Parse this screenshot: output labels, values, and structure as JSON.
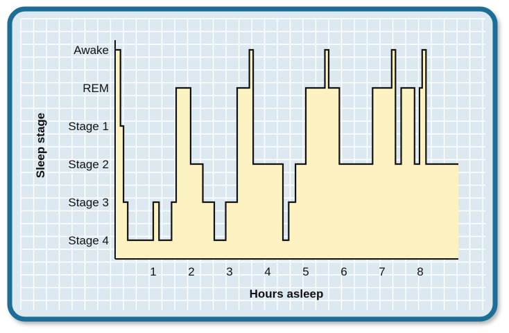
{
  "chart_data": {
    "type": "line",
    "title": "",
    "xlabel": "Hours asleep",
    "ylabel": "Sleep stage",
    "xlim": [
      0,
      9
    ],
    "xticks": [
      1,
      2,
      3,
      4,
      5,
      6,
      7,
      8
    ],
    "yticks": [
      "Awake",
      "REM",
      "Stage 1",
      "Stage 2",
      "Stage 3",
      "Stage 4"
    ],
    "grid": true,
    "legend": "none",
    "area_fill": true,
    "series": [
      {
        "name": "",
        "x": [
          0.0,
          0.14,
          0.14,
          0.22,
          0.22,
          0.33,
          0.33,
          1.0,
          1.0,
          1.15,
          1.15,
          1.48,
          1.48,
          1.6,
          1.6,
          1.98,
          1.98,
          2.3,
          2.3,
          2.6,
          2.6,
          2.9,
          2.9,
          3.2,
          3.2,
          3.52,
          3.52,
          3.62,
          3.62,
          3.72,
          3.72,
          4.4,
          4.4,
          4.55,
          4.55,
          4.73,
          4.73,
          5.0,
          5.0,
          5.5,
          5.5,
          5.6,
          5.6,
          5.88,
          5.88,
          6.75,
          6.75,
          7.25,
          7.25,
          7.35,
          7.35,
          7.5,
          7.5,
          7.85,
          7.85,
          7.98,
          7.98,
          8.05,
          8.05,
          8.15,
          8.15,
          9.0
        ],
        "y": [
          "Awake",
          "Awake",
          "Stage 1",
          "Stage 1",
          "Stage 3",
          "Stage 3",
          "Stage 4",
          "Stage 4",
          "Stage 3",
          "Stage 3",
          "Stage 4",
          "Stage 4",
          "Stage 3",
          "Stage 3",
          "REM",
          "REM",
          "Stage 2",
          "Stage 2",
          "Stage 3",
          "Stage 3",
          "Stage 4",
          "Stage 4",
          "Stage 3",
          "Stage 3",
          "REM",
          "REM",
          "Awake",
          "Awake",
          "Stage 2",
          "Stage 2",
          "Stage 2",
          "Stage 2",
          "Stage 4",
          "Stage 4",
          "Stage 3",
          "Stage 3",
          "Stage 2",
          "Stage 2",
          "REM",
          "REM",
          "Awake",
          "Awake",
          "REM",
          "REM",
          "Stage 2",
          "Stage 2",
          "REM",
          "REM",
          "Awake",
          "Awake",
          "Stage 2",
          "Stage 2",
          "REM",
          "REM",
          "Stage 2",
          "Stage 2",
          "REM",
          "REM",
          "Awake",
          "Awake",
          "Stage 2",
          "Stage 2"
        ]
      }
    ]
  },
  "colors": {
    "frame_border": "#1d6e96",
    "panel_background": "#dde9f0",
    "grid_line": "#ffffff",
    "area_fill": "#fdf2c2",
    "line": "#111111",
    "text": "#111111"
  }
}
